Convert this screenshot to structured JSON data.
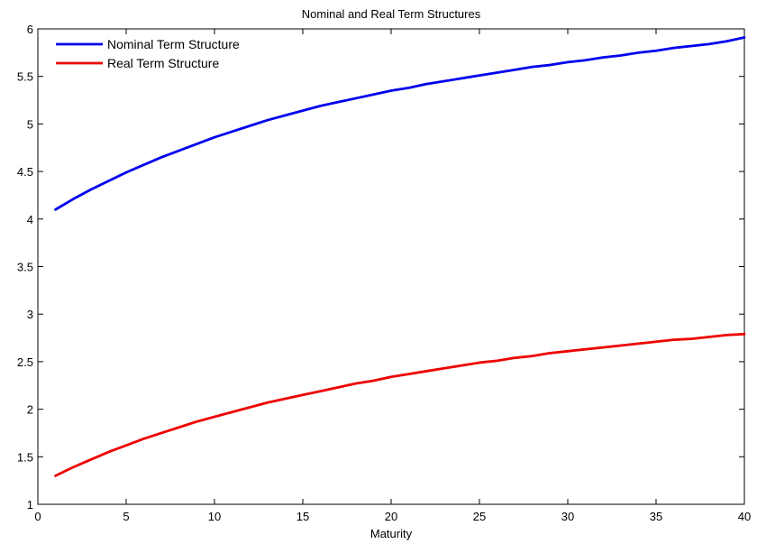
{
  "chart_data": {
    "type": "line",
    "title": "Nominal and Real Term Structures",
    "xlabel": "Maturity",
    "ylabel": "",
    "xlim": [
      0,
      40
    ],
    "ylim": [
      1,
      6
    ],
    "xticks": [
      0,
      5,
      10,
      15,
      20,
      25,
      30,
      35,
      40
    ],
    "yticks": [
      1,
      1.5,
      2,
      2.5,
      3,
      3.5,
      4,
      4.5,
      5,
      5.5,
      6
    ],
    "grid": false,
    "legend": "top-left",
    "x": [
      1,
      2,
      3,
      4,
      5,
      6,
      7,
      8,
      9,
      10,
      11,
      12,
      13,
      14,
      15,
      16,
      17,
      18,
      19,
      20,
      21,
      22,
      23,
      24,
      25,
      26,
      27,
      28,
      29,
      30,
      31,
      32,
      33,
      34,
      35,
      36,
      37,
      38,
      39,
      40
    ],
    "series": [
      {
        "name": "Nominal Term Structure",
        "color": "#0000ee",
        "values": [
          4.1,
          4.21,
          4.31,
          4.4,
          4.49,
          4.57,
          4.65,
          4.72,
          4.79,
          4.86,
          4.92,
          4.98,
          5.04,
          5.09,
          5.14,
          5.19,
          5.23,
          5.27,
          5.31,
          5.35,
          5.38,
          5.42,
          5.45,
          5.48,
          5.51,
          5.54,
          5.57,
          5.6,
          5.62,
          5.65,
          5.67,
          5.7,
          5.72,
          5.75,
          5.77,
          5.8,
          5.82,
          5.84,
          5.87,
          5.91
        ]
      },
      {
        "name": "Real Term Structure",
        "color": "#ee0000",
        "values": [
          1.3,
          1.39,
          1.47,
          1.55,
          1.62,
          1.69,
          1.75,
          1.81,
          1.87,
          1.92,
          1.97,
          2.02,
          2.07,
          2.11,
          2.15,
          2.19,
          2.23,
          2.27,
          2.3,
          2.34,
          2.37,
          2.4,
          2.43,
          2.46,
          2.49,
          2.51,
          2.54,
          2.56,
          2.59,
          2.61,
          2.63,
          2.65,
          2.67,
          2.69,
          2.71,
          2.73,
          2.74,
          2.76,
          2.78,
          2.79
        ]
      }
    ]
  }
}
